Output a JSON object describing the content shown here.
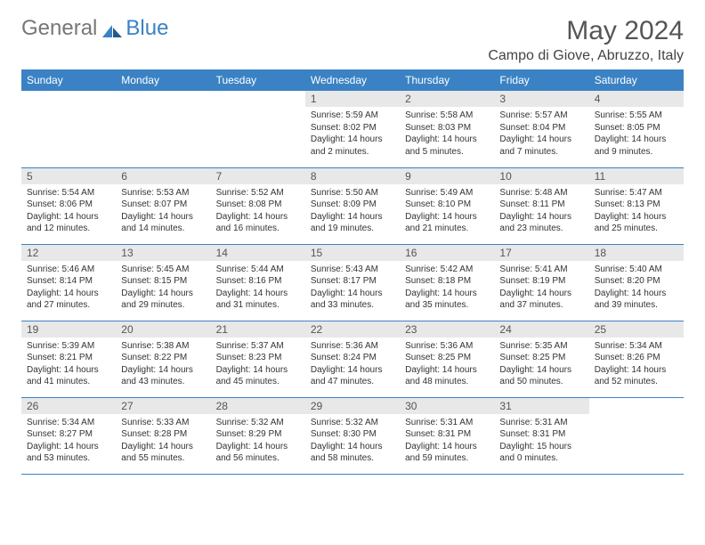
{
  "brand": {
    "part1": "General",
    "part2": "Blue"
  },
  "header": {
    "month_title": "May 2024",
    "location": "Campo di Giove, Abruzzo, Italy"
  },
  "style": {
    "accent_color": "#3b82c4",
    "header_text_color": "#ffffff",
    "daynum_bg": "#e8e8e8",
    "body_bg": "#ffffff",
    "row_border_color": "#3b82c4",
    "title_color": "#555555",
    "text_color": "#333333",
    "font_family": "Arial",
    "month_title_fontsize": 30,
    "location_fontsize": 16,
    "dayheader_fontsize": 12,
    "daynum_fontsize": 12,
    "body_fontsize": 10
  },
  "calendar": {
    "type": "table",
    "columns": [
      "Sunday",
      "Monday",
      "Tuesday",
      "Wednesday",
      "Thursday",
      "Friday",
      "Saturday"
    ],
    "weeks": [
      [
        null,
        null,
        null,
        {
          "n": "1",
          "sr": "5:59 AM",
          "ss": "8:02 PM",
          "dl": "14 hours and 2 minutes."
        },
        {
          "n": "2",
          "sr": "5:58 AM",
          "ss": "8:03 PM",
          "dl": "14 hours and 5 minutes."
        },
        {
          "n": "3",
          "sr": "5:57 AM",
          "ss": "8:04 PM",
          "dl": "14 hours and 7 minutes."
        },
        {
          "n": "4",
          "sr": "5:55 AM",
          "ss": "8:05 PM",
          "dl": "14 hours and 9 minutes."
        }
      ],
      [
        {
          "n": "5",
          "sr": "5:54 AM",
          "ss": "8:06 PM",
          "dl": "14 hours and 12 minutes."
        },
        {
          "n": "6",
          "sr": "5:53 AM",
          "ss": "8:07 PM",
          "dl": "14 hours and 14 minutes."
        },
        {
          "n": "7",
          "sr": "5:52 AM",
          "ss": "8:08 PM",
          "dl": "14 hours and 16 minutes."
        },
        {
          "n": "8",
          "sr": "5:50 AM",
          "ss": "8:09 PM",
          "dl": "14 hours and 19 minutes."
        },
        {
          "n": "9",
          "sr": "5:49 AM",
          "ss": "8:10 PM",
          "dl": "14 hours and 21 minutes."
        },
        {
          "n": "10",
          "sr": "5:48 AM",
          "ss": "8:11 PM",
          "dl": "14 hours and 23 minutes."
        },
        {
          "n": "11",
          "sr": "5:47 AM",
          "ss": "8:13 PM",
          "dl": "14 hours and 25 minutes."
        }
      ],
      [
        {
          "n": "12",
          "sr": "5:46 AM",
          "ss": "8:14 PM",
          "dl": "14 hours and 27 minutes."
        },
        {
          "n": "13",
          "sr": "5:45 AM",
          "ss": "8:15 PM",
          "dl": "14 hours and 29 minutes."
        },
        {
          "n": "14",
          "sr": "5:44 AM",
          "ss": "8:16 PM",
          "dl": "14 hours and 31 minutes."
        },
        {
          "n": "15",
          "sr": "5:43 AM",
          "ss": "8:17 PM",
          "dl": "14 hours and 33 minutes."
        },
        {
          "n": "16",
          "sr": "5:42 AM",
          "ss": "8:18 PM",
          "dl": "14 hours and 35 minutes."
        },
        {
          "n": "17",
          "sr": "5:41 AM",
          "ss": "8:19 PM",
          "dl": "14 hours and 37 minutes."
        },
        {
          "n": "18",
          "sr": "5:40 AM",
          "ss": "8:20 PM",
          "dl": "14 hours and 39 minutes."
        }
      ],
      [
        {
          "n": "19",
          "sr": "5:39 AM",
          "ss": "8:21 PM",
          "dl": "14 hours and 41 minutes."
        },
        {
          "n": "20",
          "sr": "5:38 AM",
          "ss": "8:22 PM",
          "dl": "14 hours and 43 minutes."
        },
        {
          "n": "21",
          "sr": "5:37 AM",
          "ss": "8:23 PM",
          "dl": "14 hours and 45 minutes."
        },
        {
          "n": "22",
          "sr": "5:36 AM",
          "ss": "8:24 PM",
          "dl": "14 hours and 47 minutes."
        },
        {
          "n": "23",
          "sr": "5:36 AM",
          "ss": "8:25 PM",
          "dl": "14 hours and 48 minutes."
        },
        {
          "n": "24",
          "sr": "5:35 AM",
          "ss": "8:25 PM",
          "dl": "14 hours and 50 minutes."
        },
        {
          "n": "25",
          "sr": "5:34 AM",
          "ss": "8:26 PM",
          "dl": "14 hours and 52 minutes."
        }
      ],
      [
        {
          "n": "26",
          "sr": "5:34 AM",
          "ss": "8:27 PM",
          "dl": "14 hours and 53 minutes."
        },
        {
          "n": "27",
          "sr": "5:33 AM",
          "ss": "8:28 PM",
          "dl": "14 hours and 55 minutes."
        },
        {
          "n": "28",
          "sr": "5:32 AM",
          "ss": "8:29 PM",
          "dl": "14 hours and 56 minutes."
        },
        {
          "n": "29",
          "sr": "5:32 AM",
          "ss": "8:30 PM",
          "dl": "14 hours and 58 minutes."
        },
        {
          "n": "30",
          "sr": "5:31 AM",
          "ss": "8:31 PM",
          "dl": "14 hours and 59 minutes."
        },
        {
          "n": "31",
          "sr": "5:31 AM",
          "ss": "8:31 PM",
          "dl": "15 hours and 0 minutes."
        },
        null
      ]
    ],
    "labels": {
      "sunrise": "Sunrise:",
      "sunset": "Sunset:",
      "daylight": "Daylight:"
    }
  }
}
